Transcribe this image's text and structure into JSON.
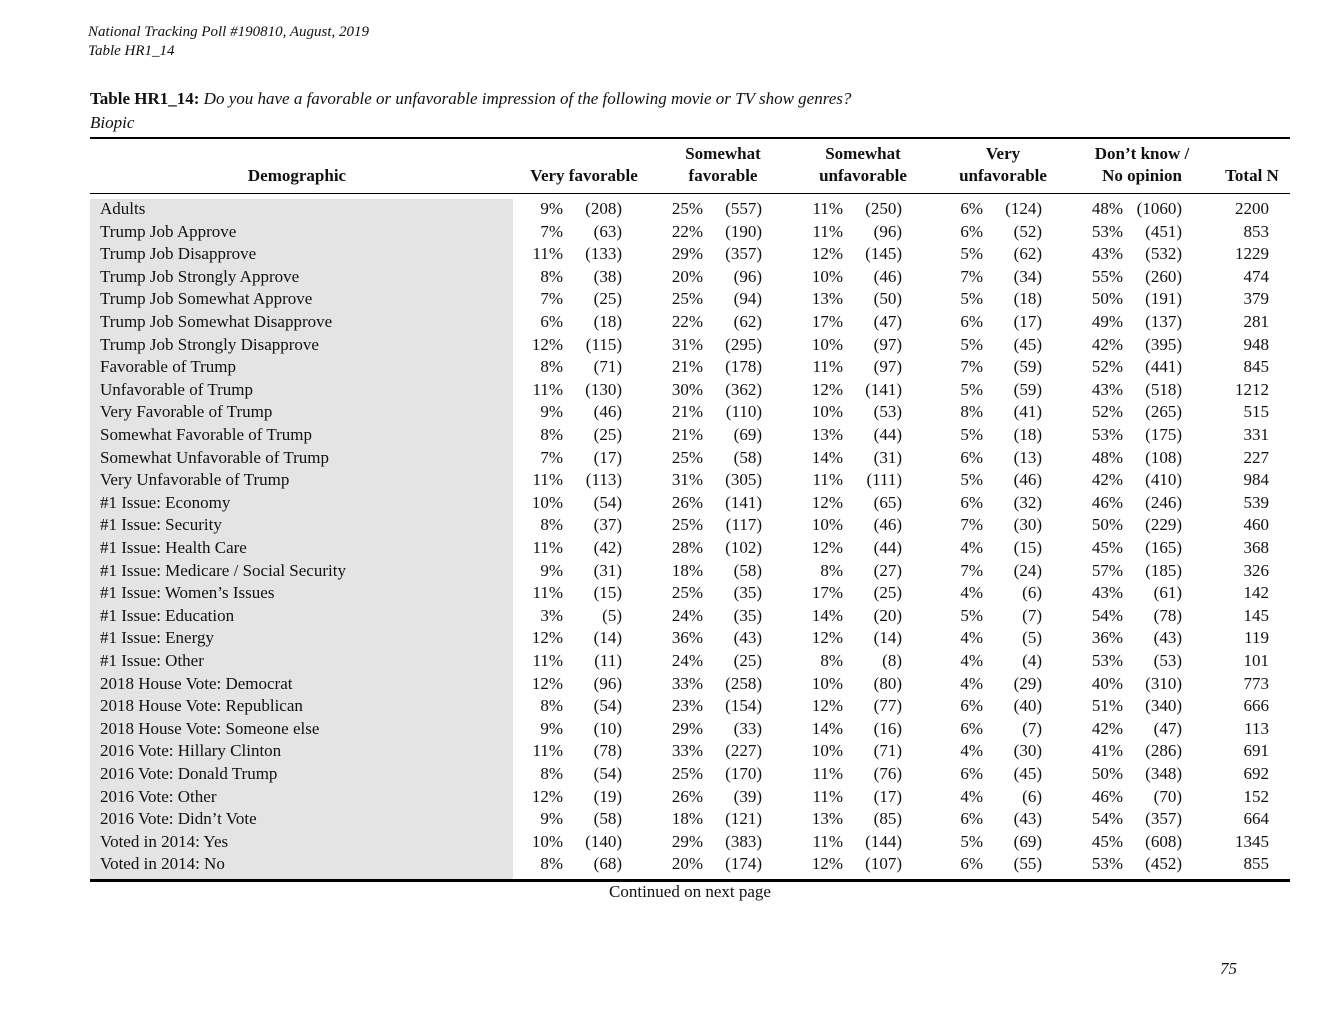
{
  "header": {
    "line1": "National Tracking Poll #190810, August, 2019",
    "line2": "Table HR1_14"
  },
  "title": {
    "label": "Table HR1_14:",
    "question": "Do you have a favorable or unfavorable impression of the following movie or TV show genres?",
    "subtitle": "Biopic"
  },
  "table": {
    "columns": [
      {
        "lines": [
          "Demographic"
        ]
      },
      {
        "lines": [
          "Very favorable"
        ]
      },
      {
        "lines": [
          "Somewhat",
          "favorable"
        ]
      },
      {
        "lines": [
          "Somewhat",
          "unfavorable"
        ]
      },
      {
        "lines": [
          "Very",
          "unfavorable"
        ]
      },
      {
        "lines": [
          "Don’t know /",
          "No opinion"
        ]
      },
      {
        "lines": [
          "Total N"
        ]
      }
    ],
    "rows": [
      [
        "Adults",
        "9%",
        "(208)",
        "25%",
        "(557)",
        "11%",
        "(250)",
        "6%",
        "(124)",
        "48%",
        "(1060)",
        "2200"
      ],
      [
        "Trump Job Approve",
        "7%",
        "(63)",
        "22%",
        "(190)",
        "11%",
        "(96)",
        "6%",
        "(52)",
        "53%",
        "(451)",
        "853"
      ],
      [
        "Trump Job Disapprove",
        "11%",
        "(133)",
        "29%",
        "(357)",
        "12%",
        "(145)",
        "5%",
        "(62)",
        "43%",
        "(532)",
        "1229"
      ],
      [
        "Trump Job Strongly Approve",
        "8%",
        "(38)",
        "20%",
        "(96)",
        "10%",
        "(46)",
        "7%",
        "(34)",
        "55%",
        "(260)",
        "474"
      ],
      [
        "Trump Job Somewhat Approve",
        "7%",
        "(25)",
        "25%",
        "(94)",
        "13%",
        "(50)",
        "5%",
        "(18)",
        "50%",
        "(191)",
        "379"
      ],
      [
        "Trump Job Somewhat Disapprove",
        "6%",
        "(18)",
        "22%",
        "(62)",
        "17%",
        "(47)",
        "6%",
        "(17)",
        "49%",
        "(137)",
        "281"
      ],
      [
        "Trump Job Strongly Disapprove",
        "12%",
        "(115)",
        "31%",
        "(295)",
        "10%",
        "(97)",
        "5%",
        "(45)",
        "42%",
        "(395)",
        "948"
      ],
      [
        "Favorable of Trump",
        "8%",
        "(71)",
        "21%",
        "(178)",
        "11%",
        "(97)",
        "7%",
        "(59)",
        "52%",
        "(441)",
        "845"
      ],
      [
        "Unfavorable of Trump",
        "11%",
        "(130)",
        "30%",
        "(362)",
        "12%",
        "(141)",
        "5%",
        "(59)",
        "43%",
        "(518)",
        "1212"
      ],
      [
        "Very Favorable of Trump",
        "9%",
        "(46)",
        "21%",
        "(110)",
        "10%",
        "(53)",
        "8%",
        "(41)",
        "52%",
        "(265)",
        "515"
      ],
      [
        "Somewhat Favorable of Trump",
        "8%",
        "(25)",
        "21%",
        "(69)",
        "13%",
        "(44)",
        "5%",
        "(18)",
        "53%",
        "(175)",
        "331"
      ],
      [
        "Somewhat Unfavorable of Trump",
        "7%",
        "(17)",
        "25%",
        "(58)",
        "14%",
        "(31)",
        "6%",
        "(13)",
        "48%",
        "(108)",
        "227"
      ],
      [
        "Very Unfavorable of Trump",
        "11%",
        "(113)",
        "31%",
        "(305)",
        "11%",
        "(111)",
        "5%",
        "(46)",
        "42%",
        "(410)",
        "984"
      ],
      [
        "#1 Issue: Economy",
        "10%",
        "(54)",
        "26%",
        "(141)",
        "12%",
        "(65)",
        "6%",
        "(32)",
        "46%",
        "(246)",
        "539"
      ],
      [
        "#1 Issue: Security",
        "8%",
        "(37)",
        "25%",
        "(117)",
        "10%",
        "(46)",
        "7%",
        "(30)",
        "50%",
        "(229)",
        "460"
      ],
      [
        "#1 Issue: Health Care",
        "11%",
        "(42)",
        "28%",
        "(102)",
        "12%",
        "(44)",
        "4%",
        "(15)",
        "45%",
        "(165)",
        "368"
      ],
      [
        "#1 Issue: Medicare / Social Security",
        "9%",
        "(31)",
        "18%",
        "(58)",
        "8%",
        "(27)",
        "7%",
        "(24)",
        "57%",
        "(185)",
        "326"
      ],
      [
        "#1 Issue: Women’s Issues",
        "11%",
        "(15)",
        "25%",
        "(35)",
        "17%",
        "(25)",
        "4%",
        "(6)",
        "43%",
        "(61)",
        "142"
      ],
      [
        "#1 Issue: Education",
        "3%",
        "(5)",
        "24%",
        "(35)",
        "14%",
        "(20)",
        "5%",
        "(7)",
        "54%",
        "(78)",
        "145"
      ],
      [
        "#1 Issue: Energy",
        "12%",
        "(14)",
        "36%",
        "(43)",
        "12%",
        "(14)",
        "4%",
        "(5)",
        "36%",
        "(43)",
        "119"
      ],
      [
        "#1 Issue: Other",
        "11%",
        "(11)",
        "24%",
        "(25)",
        "8%",
        "(8)",
        "4%",
        "(4)",
        "53%",
        "(53)",
        "101"
      ],
      [
        "2018 House Vote: Democrat",
        "12%",
        "(96)",
        "33%",
        "(258)",
        "10%",
        "(80)",
        "4%",
        "(29)",
        "40%",
        "(310)",
        "773"
      ],
      [
        "2018 House Vote: Republican",
        "8%",
        "(54)",
        "23%",
        "(154)",
        "12%",
        "(77)",
        "6%",
        "(40)",
        "51%",
        "(340)",
        "666"
      ],
      [
        "2018 House Vote: Someone else",
        "9%",
        "(10)",
        "29%",
        "(33)",
        "14%",
        "(16)",
        "6%",
        "(7)",
        "42%",
        "(47)",
        "113"
      ],
      [
        "2016 Vote: Hillary Clinton",
        "11%",
        "(78)",
        "33%",
        "(227)",
        "10%",
        "(71)",
        "4%",
        "(30)",
        "41%",
        "(286)",
        "691"
      ],
      [
        "2016 Vote: Donald Trump",
        "8%",
        "(54)",
        "25%",
        "(170)",
        "11%",
        "(76)",
        "6%",
        "(45)",
        "50%",
        "(348)",
        "692"
      ],
      [
        "2016 Vote: Other",
        "12%",
        "(19)",
        "26%",
        "(39)",
        "11%",
        "(17)",
        "4%",
        "(6)",
        "46%",
        "(70)",
        "152"
      ],
      [
        "2016 Vote: Didn’t Vote",
        "9%",
        "(58)",
        "18%",
        "(121)",
        "13%",
        "(85)",
        "6%",
        "(43)",
        "54%",
        "(357)",
        "664"
      ],
      [
        "Voted in 2014: Yes",
        "10%",
        "(140)",
        "29%",
        "(383)",
        "11%",
        "(144)",
        "5%",
        "(69)",
        "45%",
        "(608)",
        "1345"
      ],
      [
        "Voted in 2014: No",
        "8%",
        "(68)",
        "20%",
        "(174)",
        "12%",
        "(107)",
        "6%",
        "(55)",
        "53%",
        "(452)",
        "855"
      ]
    ]
  },
  "footer": {
    "continued": "Continued on next page",
    "page": "75"
  }
}
